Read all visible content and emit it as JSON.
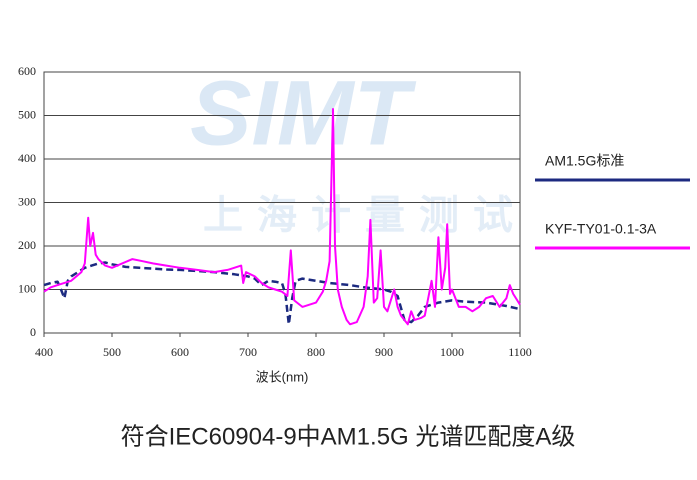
{
  "chart_data": {
    "type": "line",
    "caption": "符合IEC60904-9中AM1.5G 光谱匹配度A级",
    "x_label": "波长(nm)",
    "watermark": {
      "logo": "SIMT",
      "text": "上海计量测试"
    },
    "xlim": [
      400,
      1100
    ],
    "xticks": [
      400,
      500,
      600,
      700,
      800,
      900,
      1000,
      1100
    ],
    "ylim": [
      0,
      600
    ],
    "yticks": [
      0,
      100,
      200,
      300,
      400,
      500,
      600
    ],
    "grid": true,
    "legend": "right",
    "series": [
      {
        "name": "AM1.5G标准",
        "color": "#1c2a80",
        "dashed": true,
        "x": [
          400,
          410,
          420,
          425,
          430,
          435,
          440,
          450,
          460,
          470,
          480,
          490,
          500,
          520,
          540,
          560,
          580,
          600,
          620,
          650,
          680,
          700,
          710,
          720,
          730,
          740,
          750,
          755,
          760,
          765,
          770,
          780,
          800,
          820,
          850,
          870,
          900,
          910,
          920,
          930,
          940,
          950,
          960,
          970,
          980,
          1000,
          1020,
          1050,
          1080,
          1100
        ],
        "values": [
          110,
          115,
          118,
          100,
          80,
          120,
          130,
          140,
          150,
          155,
          160,
          162,
          158,
          152,
          150,
          148,
          146,
          145,
          143,
          140,
          135,
          130,
          125,
          110,
          120,
          118,
          115,
          90,
          20,
          80,
          120,
          125,
          120,
          115,
          110,
          105,
          100,
          95,
          85,
          30,
          25,
          40,
          60,
          65,
          70,
          75,
          72,
          70,
          62,
          55
        ]
      },
      {
        "name": "KYF-TY01-0.1-3A",
        "color": "#ff00ff",
        "dashed": false,
        "x": [
          400,
          410,
          420,
          440,
          455,
          460,
          465,
          468,
          472,
          476,
          480,
          490,
          500,
          515,
          530,
          545,
          560,
          580,
          600,
          625,
          650,
          670,
          690,
          693,
          697,
          710,
          720,
          730,
          740,
          750,
          758,
          763,
          768,
          780,
          800,
          810,
          815,
          820,
          825,
          828,
          832,
          838,
          845,
          850,
          860,
          870,
          876,
          880,
          885,
          890,
          895,
          900,
          905,
          915,
          920,
          925,
          935,
          940,
          945,
          955,
          960,
          970,
          975,
          980,
          985,
          990,
          993,
          997,
          1000,
          1010,
          1020,
          1030,
          1040,
          1050,
          1060,
          1070,
          1080,
          1085,
          1090,
          1100
        ],
        "values": [
          95,
          105,
          110,
          120,
          140,
          160,
          265,
          200,
          230,
          180,
          170,
          155,
          150,
          160,
          170,
          165,
          160,
          155,
          150,
          145,
          140,
          145,
          155,
          115,
          140,
          130,
          115,
          105,
          100,
          95,
          85,
          190,
          75,
          60,
          70,
          95,
          120,
          165,
          515,
          200,
          100,
          60,
          30,
          20,
          25,
          60,
          130,
          260,
          70,
          80,
          190,
          60,
          50,
          100,
          60,
          40,
          20,
          50,
          30,
          35,
          40,
          120,
          60,
          220,
          100,
          150,
          250,
          90,
          100,
          60,
          60,
          50,
          60,
          80,
          85,
          60,
          80,
          110,
          90,
          65
        ]
      }
    ]
  }
}
